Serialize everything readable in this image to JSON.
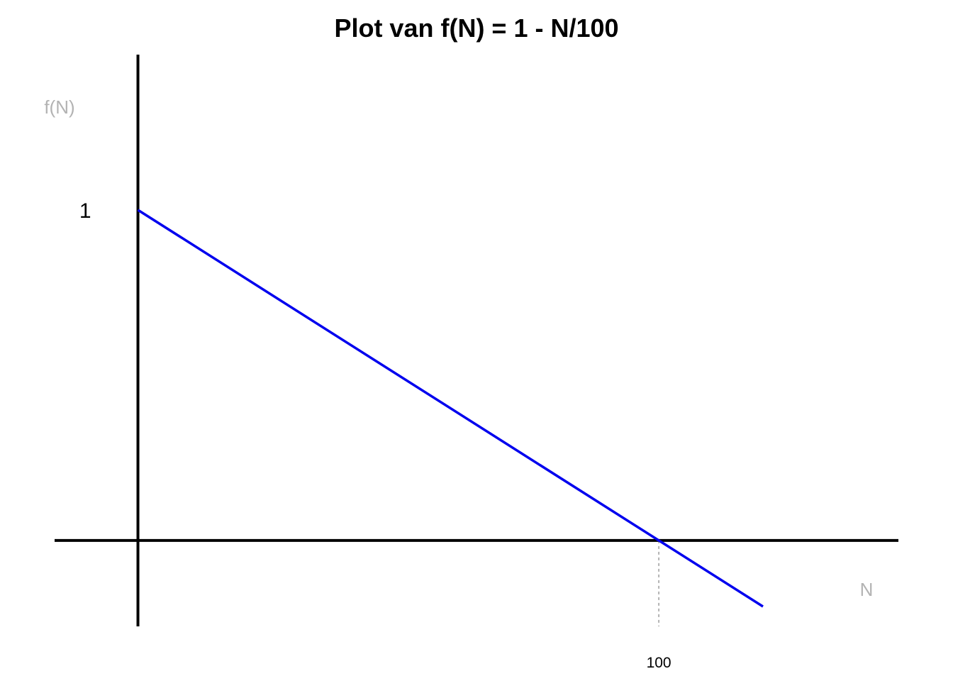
{
  "chart_data": {
    "type": "line",
    "title": "Plot van f(N) = 1 - N/100",
    "xlabel": "N",
    "ylabel": "f(N)",
    "xlim": [
      -16,
      146
    ],
    "ylim": [
      -0.26,
      1.47
    ],
    "x_ticks": [
      {
        "value": 100,
        "label": "100"
      }
    ],
    "y_ticks": [
      {
        "value": 1,
        "label": "1"
      }
    ],
    "grid": false,
    "legend": "none",
    "series": [
      {
        "color": "#0000ee",
        "x": [
          0,
          120
        ],
        "y": [
          1,
          -0.2
        ]
      }
    ],
    "reference_lines": [
      {
        "type": "vertical",
        "x": 100,
        "from_y": 0,
        "style": "dashed",
        "color": "#b3b3b3"
      }
    ],
    "axis_color": "#000000"
  }
}
